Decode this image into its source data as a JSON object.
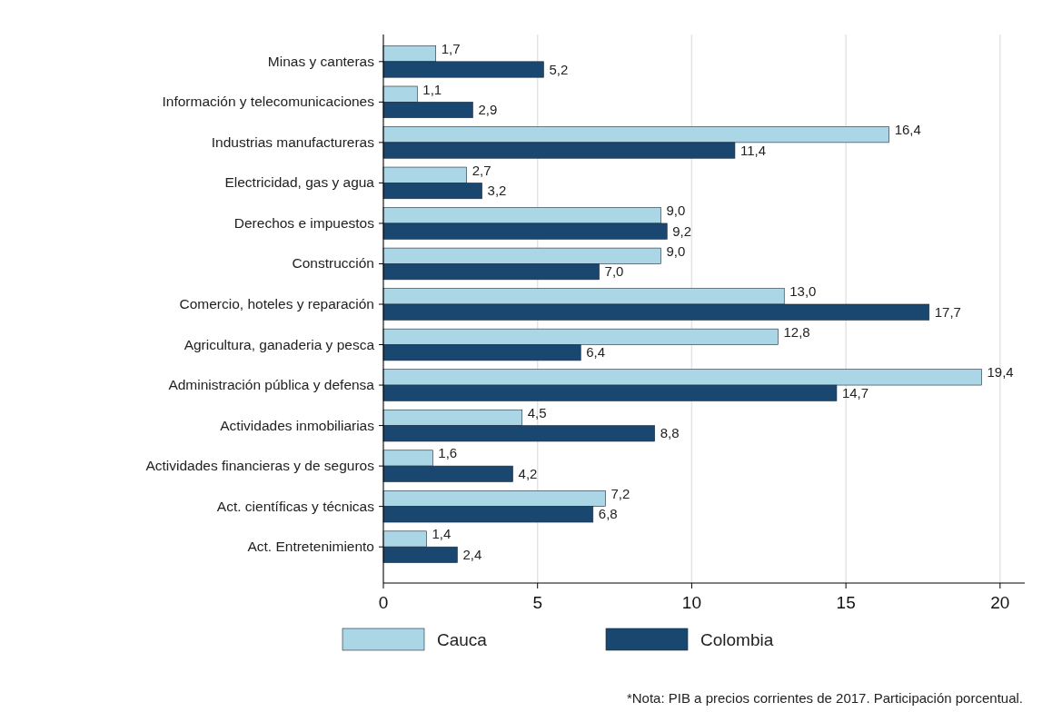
{
  "chart_data": {
    "type": "bar",
    "orientation": "horizontal",
    "categories": [
      "Minas y canteras",
      "Información y telecomunicaciones",
      "Industrias manufactureras",
      "Electricidad, gas y agua",
      "Derechos e impuestos",
      "Construcción",
      "Comercio, hoteles y reparación",
      "Agricultura, ganaderia y pesca",
      "Administración pública y defensa",
      "Actividades inmobiliarias",
      "Actividades financieras y de seguros",
      "Act. científicas y técnicas",
      "Act. Entretenimiento"
    ],
    "series": [
      {
        "name": "Cauca",
        "color": "#aad6e6",
        "values": [
          1.7,
          1.1,
          16.4,
          2.7,
          9.0,
          9.0,
          13.0,
          12.8,
          19.4,
          4.5,
          1.6,
          7.2,
          1.4
        ],
        "value_labels": [
          "1,7",
          "1,1",
          "16,4",
          "2,7",
          "9,0",
          "9,0",
          "13,0",
          "12,8",
          "19,4",
          "4,5",
          "1,6",
          "7,2",
          "1,4"
        ]
      },
      {
        "name": "Colombia",
        "color": "#1a476f",
        "values": [
          5.2,
          2.9,
          11.4,
          3.2,
          9.2,
          7.0,
          17.7,
          6.4,
          14.7,
          8.8,
          4.2,
          6.8,
          2.4
        ],
        "value_labels": [
          "5,2",
          "2,9",
          "11,4",
          "3,2",
          "9,2",
          "7,0",
          "17,7",
          "6,4",
          "14,7",
          "8,8",
          "4,2",
          "6,8",
          "2,4"
        ]
      }
    ],
    "xlim": [
      0,
      20.8
    ],
    "xticks": [
      0,
      5,
      10,
      15,
      20
    ],
    "grid": "x",
    "legend": "bottom",
    "annotations": [
      "*Nota: PIB a precios corrientes de 2017. Participación porcentual."
    ]
  }
}
